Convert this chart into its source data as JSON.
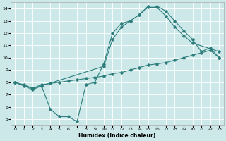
{
  "xlabel": "Humidex (Indice chaleur)",
  "bg_color": "#cce8e8",
  "grid_color": "#ffffff",
  "line_color": "#2d7d7d",
  "xlim": [
    -0.5,
    23.5
  ],
  "ylim": [
    4.5,
    14.5
  ],
  "xticks": [
    0,
    1,
    2,
    3,
    4,
    5,
    6,
    7,
    8,
    9,
    10,
    11,
    12,
    13,
    14,
    15,
    16,
    17,
    18,
    19,
    20,
    21,
    22,
    23
  ],
  "yticks": [
    5,
    6,
    7,
    8,
    9,
    10,
    11,
    12,
    13,
    14
  ],
  "curve1_x": [
    0,
    1,
    2,
    3,
    4,
    5,
    6,
    7,
    8,
    9,
    10,
    11,
    12,
    13,
    14,
    15,
    16,
    17,
    18,
    19,
    20,
    21,
    22,
    23
  ],
  "curve1_y": [
    8.0,
    7.7,
    7.4,
    7.7,
    5.8,
    5.2,
    5.2,
    4.8,
    7.8,
    8.0,
    9.5,
    12.0,
    12.8,
    13.0,
    13.5,
    14.2,
    14.2,
    13.8,
    13.0,
    12.2,
    11.5,
    10.5,
    10.8,
    10.0
  ],
  "curve2_x": [
    0,
    2,
    3,
    10,
    11,
    12,
    13,
    14,
    15,
    16,
    17,
    18,
    19,
    20,
    23
  ],
  "curve2_y": [
    8.0,
    7.5,
    7.7,
    9.3,
    11.5,
    12.5,
    13.0,
    13.5,
    14.1,
    14.1,
    13.4,
    12.5,
    11.8,
    11.2,
    10.5
  ],
  "curve3_x": [
    0,
    1,
    2,
    3,
    4,
    5,
    6,
    7,
    8,
    9,
    10,
    11,
    12,
    13,
    14,
    15,
    16,
    17,
    18,
    19,
    20,
    21,
    22,
    23
  ],
  "curve3_y": [
    8.0,
    7.8,
    7.5,
    7.8,
    7.9,
    8.0,
    8.1,
    8.2,
    8.3,
    8.4,
    8.5,
    8.7,
    8.8,
    9.0,
    9.2,
    9.4,
    9.5,
    9.6,
    9.8,
    10.0,
    10.2,
    10.4,
    10.6,
    10.0
  ],
  "figsize": [
    3.2,
    2.0
  ],
  "dpi": 100
}
